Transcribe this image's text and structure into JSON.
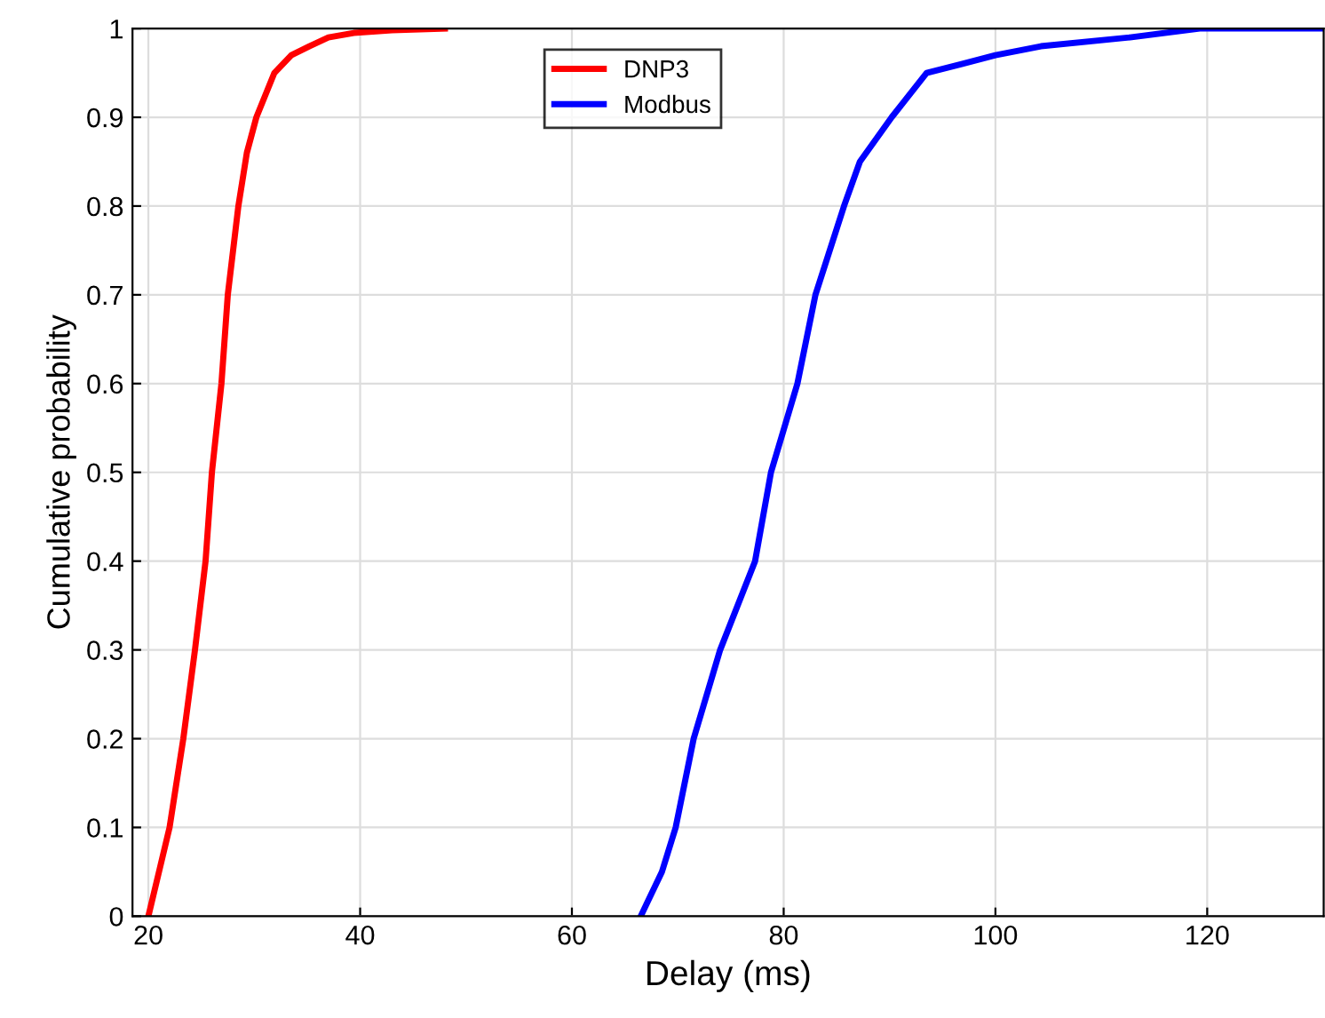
{
  "chart_data": {
    "type": "line",
    "xlabel": "Delay (ms)",
    "ylabel": "Cumulative probability",
    "series": [
      {
        "name": "DNP3",
        "color": "#ff0000",
        "x": [
          20,
          21,
          22,
          23.3,
          24.4,
          25.4,
          26,
          26.9,
          27.5,
          28.5,
          29.3,
          30.2,
          31.9,
          33.5,
          35.2,
          37,
          39.4,
          43,
          48
        ],
        "values": [
          0,
          0.05,
          0.1,
          0.2,
          0.3,
          0.4,
          0.5,
          0.6,
          0.7,
          0.8,
          0.86,
          0.9,
          0.95,
          0.97,
          0.98,
          0.99,
          0.995,
          0.998,
          1
        ]
      },
      {
        "name": "Modbus",
        "color": "#0000ff",
        "x": [
          66.5,
          68.5,
          69.8,
          71.5,
          74,
          77.3,
          78.8,
          81.3,
          83,
          85.7,
          87.2,
          90.2,
          93.5,
          96.8,
          100,
          104.3,
          112.7,
          119.3,
          131
        ],
        "values": [
          0,
          0.05,
          0.1,
          0.2,
          0.3,
          0.4,
          0.5,
          0.6,
          0.7,
          0.8,
          0.85,
          0.9,
          0.95,
          0.96,
          0.97,
          0.98,
          0.99,
          1,
          1
        ]
      }
    ],
    "xlim": [
      18.5,
      131
    ],
    "ylim": [
      0,
      1
    ],
    "xticks": [
      20,
      40,
      60,
      80,
      100,
      120
    ],
    "yticks": [
      0,
      0.1,
      0.2,
      0.3,
      0.4,
      0.5,
      0.6,
      0.7,
      0.8,
      0.9,
      1
    ],
    "grid": true,
    "legend": "top center"
  }
}
